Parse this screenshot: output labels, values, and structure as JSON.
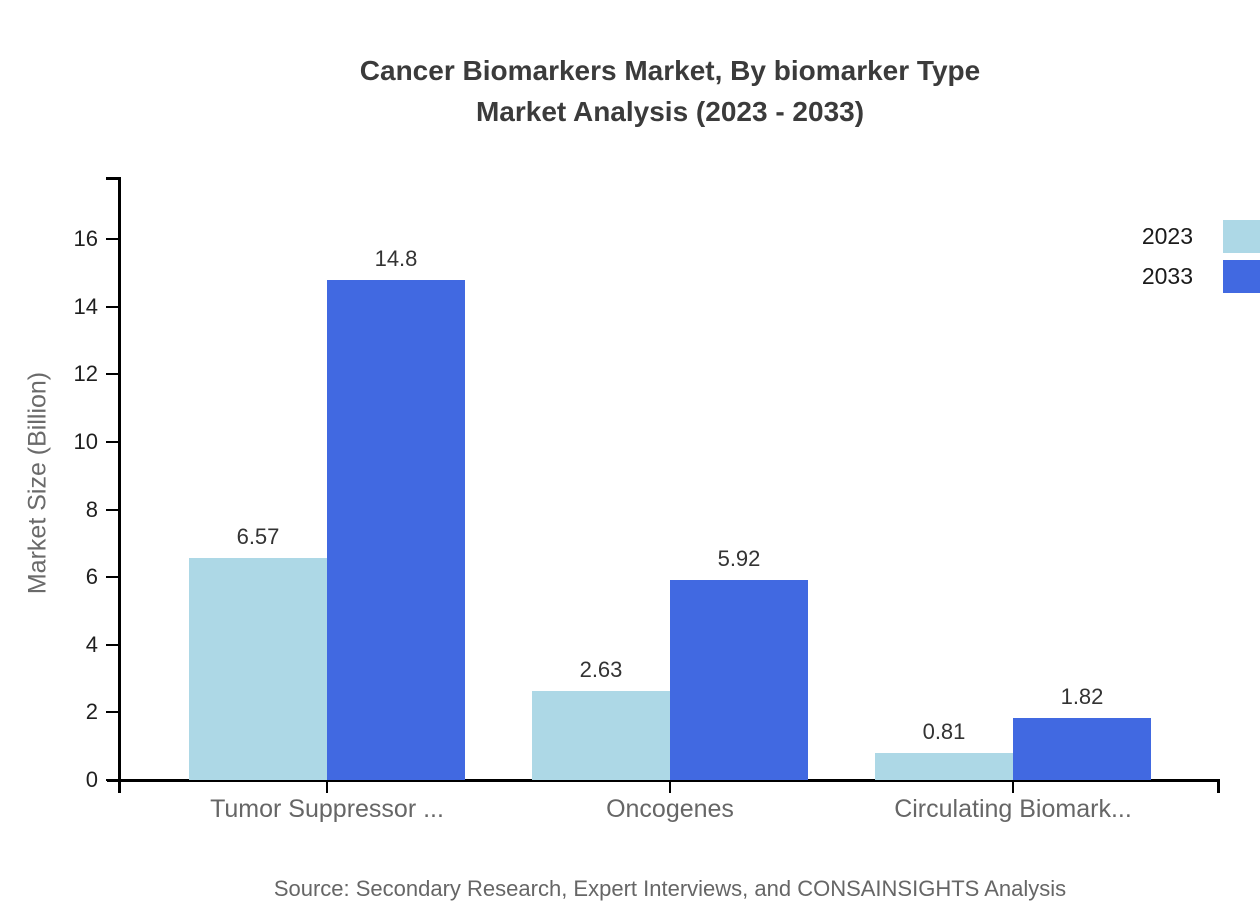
{
  "title": {
    "line1": "Cancer Biomarkers Market, By biomarker Type",
    "line2": "Market Analysis (2023 - 2033)"
  },
  "source": "Source: Secondary Research, Expert Interviews, and CONSAINSIGHTS Analysis",
  "legend": [
    {
      "label": "2023",
      "color": "#ADD8E6"
    },
    {
      "label": "2033",
      "color": "#4169E1"
    }
  ],
  "chart_data": {
    "type": "bar",
    "title": "Cancer Biomarkers Market, By biomarker Type Market Analysis (2023 - 2033)",
    "categories": [
      "Tumor Suppressor ...",
      "Oncogenes",
      "Circulating Biomark..."
    ],
    "series": [
      {
        "name": "2023",
        "color": "#ADD8E6",
        "values": [
          6.57,
          2.63,
          0.81
        ],
        "labels": [
          "6.57",
          "2.63",
          "0.81"
        ]
      },
      {
        "name": "2033",
        "color": "#4169E1",
        "values": [
          14.8,
          5.92,
          1.82
        ],
        "labels": [
          "14.8",
          "5.92",
          "1.82"
        ]
      }
    ],
    "xlabel": "",
    "ylabel": "Market Size (Billion)",
    "ylim": [
      0,
      16
    ],
    "yticks": [
      0,
      2,
      4,
      6,
      8,
      10,
      12,
      14,
      16
    ],
    "grid": false,
    "legend_position": "top-right"
  },
  "colors": {
    "series_2023": "#ADD8E6",
    "series_2033": "#4169E1",
    "axis": "#000000",
    "title_text": "#3b3b3b",
    "tick_text": "#1f1f1f",
    "muted_text": "#666666"
  }
}
